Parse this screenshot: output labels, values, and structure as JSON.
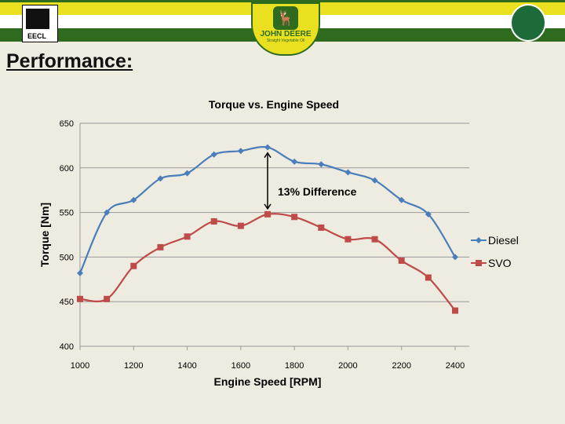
{
  "slide": {
    "title": "Performance:",
    "logos": {
      "left": "EECL",
      "center_line1": "JOHN DEERE",
      "center_line2": "Straight Vegetable Oil"
    }
  },
  "colors": {
    "green": "#2E6B1E",
    "yellow": "#E9E020",
    "diesel": "#4A7EBB",
    "svo": "#BE4B48"
  },
  "chart_data": {
    "type": "line",
    "title": "Torque vs. Engine Speed",
    "xlabel": "Engine Speed [RPM]",
    "ylabel": "Torque [Nm]",
    "xlim": [
      1000,
      2400
    ],
    "ylim": [
      400,
      650
    ],
    "xticks": [
      1000,
      1200,
      1400,
      1600,
      1800,
      2000,
      2200,
      2400
    ],
    "yticks": [
      400,
      450,
      500,
      550,
      600,
      650
    ],
    "grid": true,
    "legend": "right",
    "x": [
      1000,
      1100,
      1200,
      1300,
      1400,
      1500,
      1600,
      1700,
      1800,
      1900,
      2000,
      2100,
      2200,
      2300,
      2400
    ],
    "series": [
      {
        "name": "Diesel",
        "marker": "diamond",
        "values": [
          482,
          550,
          564,
          588,
          594,
          615,
          619,
          623,
          607,
          604,
          595,
          586,
          564,
          548,
          500
        ]
      },
      {
        "name": "SVO",
        "marker": "square",
        "values": [
          453,
          453,
          490,
          511,
          523,
          540,
          535,
          548,
          545,
          533,
          520,
          520,
          496,
          477,
          440
        ]
      }
    ],
    "annotation": {
      "text": "13% Difference",
      "x": 1700,
      "from": 548,
      "to": 623
    }
  }
}
